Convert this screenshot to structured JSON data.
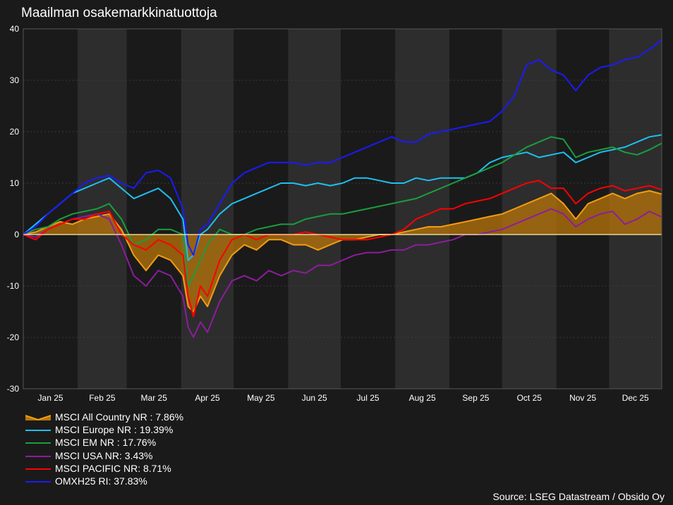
{
  "chart_data": {
    "type": "line",
    "title": "Maailman osakemarkkinatuottoja",
    "source": "Source: LSEG Datastream / Obsido Oy",
    "xlabel": "",
    "ylabel": "",
    "ylim": [
      -30,
      40
    ],
    "yticks": [
      "-30",
      "-20",
      "-10",
      "0",
      "10",
      "20",
      "30",
      "40"
    ],
    "xticks": [
      "Jan 25",
      "Feb 25",
      "Mar 25",
      "Apr 25",
      "May 25",
      "Jun 25",
      "Jul 25",
      "Aug 25",
      "Sep 25",
      "Oct 25",
      "Nov 25",
      "Dec 25"
    ],
    "months": [
      "2025-01",
      "2025-02",
      "2025-03",
      "2025-04",
      "2025-05",
      "2025-06",
      "2025-07",
      "2025-08",
      "2025-09",
      "2025-10",
      "2025-11",
      "2025-12"
    ],
    "x": [
      "2025-01-01",
      "2025-01-08",
      "2025-01-15",
      "2025-01-22",
      "2025-01-29",
      "2025-02-05",
      "2025-02-12",
      "2025-02-19",
      "2025-02-26",
      "2025-03-05",
      "2025-03-12",
      "2025-03-19",
      "2025-03-26",
      "2025-04-02",
      "2025-04-05",
      "2025-04-08",
      "2025-04-12",
      "2025-04-16",
      "2025-04-23",
      "2025-04-30",
      "2025-05-07",
      "2025-05-14",
      "2025-05-21",
      "2025-05-28",
      "2025-06-04",
      "2025-06-11",
      "2025-06-18",
      "2025-06-25",
      "2025-07-02",
      "2025-07-09",
      "2025-07-16",
      "2025-07-23",
      "2025-07-30",
      "2025-08-06",
      "2025-08-13",
      "2025-08-20",
      "2025-08-27",
      "2025-09-03",
      "2025-09-10",
      "2025-09-17",
      "2025-09-24",
      "2025-10-01",
      "2025-10-08",
      "2025-10-15",
      "2025-10-22",
      "2025-10-29",
      "2025-11-05",
      "2025-11-12",
      "2025-11-19",
      "2025-11-26",
      "2025-12-03",
      "2025-12-10",
      "2025-12-17",
      "2025-12-24",
      "2025-12-31"
    ],
    "grid": true,
    "legend_position": "bottom-left",
    "zero_line": true,
    "series": [
      {
        "name": "MSCI All Country NR : 7.86%",
        "color": "#f39c12",
        "fill": true,
        "values": [
          0,
          0.5,
          1.5,
          2.5,
          2,
          3,
          3.5,
          4,
          1,
          -4,
          -7,
          -4,
          -5,
          -8,
          -14,
          -15,
          -12,
          -14,
          -8,
          -4,
          -2,
          -3,
          -1,
          -1,
          -2,
          -2,
          -3,
          -2,
          -1,
          -1,
          -0.5,
          0,
          0,
          0.5,
          1,
          1.5,
          1.5,
          2,
          2.5,
          3,
          3.5,
          4,
          5,
          6,
          7,
          8,
          6,
          3,
          6,
          7,
          8,
          7,
          8,
          8.5,
          7.86
        ]
      },
      {
        "name": "MSCI Europe NR : 19.39%",
        "color": "#1ec0f0",
        "values": [
          0,
          2,
          4,
          6,
          8,
          9,
          10,
          11,
          9,
          7,
          8,
          9,
          7,
          3,
          -5,
          -4,
          0,
          1,
          4,
          6,
          7,
          8,
          9,
          10,
          10,
          9.5,
          10,
          9.5,
          10,
          11,
          11,
          10.5,
          10,
          10,
          11,
          10.5,
          11,
          11,
          11,
          12,
          14,
          15,
          15.5,
          16,
          15,
          15.5,
          16,
          14,
          15,
          16,
          16.5,
          17,
          18,
          19,
          19.39
        ]
      },
      {
        "name": "MSCI EM NR : 17.76%",
        "color": "#1a9e3e",
        "values": [
          0,
          1,
          1.5,
          3,
          4,
          4.5,
          5,
          6,
          3,
          -2,
          -1,
          1,
          1,
          0,
          -10,
          -8,
          -5,
          -2,
          1,
          0,
          0,
          1,
          1.5,
          2,
          2,
          3,
          3.5,
          4,
          4,
          4.5,
          5,
          5.5,
          6,
          6.5,
          7,
          8,
          9,
          10,
          11,
          12,
          13,
          14,
          15.5,
          17,
          18,
          19,
          18.5,
          15,
          16,
          16.5,
          17,
          16,
          15.5,
          16.5,
          17.76
        ]
      },
      {
        "name": "MSCI USA NR: 3.43%",
        "color": "#8e1c9e",
        "values": [
          0,
          -0.5,
          1,
          2,
          3,
          3.5,
          4,
          3,
          -2,
          -8,
          -10,
          -7,
          -8,
          -12,
          -18,
          -20,
          -17,
          -19,
          -13,
          -9,
          -8,
          -9,
          -7,
          -8,
          -7,
          -7.5,
          -6,
          -6,
          -5,
          -4,
          -3.5,
          -3.5,
          -3,
          -3,
          -2,
          -2,
          -1.5,
          -1,
          0,
          0,
          0.5,
          1,
          2,
          3,
          4,
          5,
          4,
          1.5,
          3,
          4,
          4.5,
          2,
          3,
          4.5,
          3.43
        ]
      },
      {
        "name": "MSCI PACIFIC NR: 8.71%",
        "color": "#ff0000",
        "values": [
          0,
          -1,
          1,
          2,
          3,
          3,
          4,
          4.5,
          0,
          -2,
          -3,
          -1,
          -2,
          -4,
          -12,
          -16,
          -10,
          -12,
          -5,
          -1,
          0,
          -1,
          0,
          0,
          0,
          0.5,
          0,
          -0.5,
          -1,
          -1,
          -1,
          -0.5,
          0,
          1,
          3,
          4,
          5,
          5,
          6,
          6.5,
          7,
          8,
          9,
          10,
          10.5,
          9,
          9,
          6,
          8,
          9,
          9.5,
          8.5,
          9,
          9.5,
          8.71
        ]
      },
      {
        "name": "OMXH25 RI: 37.83%",
        "color": "#1a1aff",
        "values": [
          0,
          1.5,
          4,
          6,
          8,
          10,
          11,
          11.5,
          10,
          9,
          12,
          12.5,
          11,
          5,
          -2,
          -4,
          1,
          2,
          6,
          10,
          12,
          13,
          14,
          14,
          14,
          13.5,
          14,
          14,
          15,
          16,
          17,
          18,
          19,
          18,
          18,
          19.5,
          20,
          20.5,
          21,
          21.5,
          22,
          24,
          27,
          33,
          34,
          32,
          31,
          28,
          31,
          32.5,
          33,
          34,
          34.5,
          36,
          37.83
        ]
      }
    ]
  }
}
